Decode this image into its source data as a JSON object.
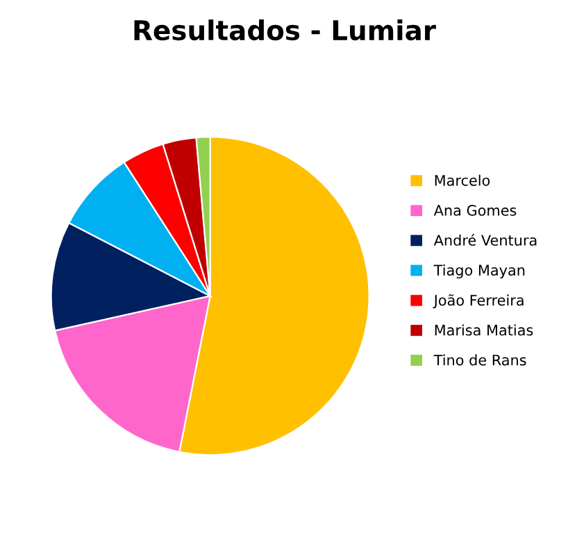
{
  "chart_data": {
    "type": "pie",
    "title": "Resultados - Lumiar",
    "categories": [
      "Marcelo",
      "Ana Gomes",
      "André Ventura",
      "Tiago Mayan",
      "João Ferreira",
      "Marisa Matias",
      "Tino de Rans"
    ],
    "values": [
      53.1,
      18.4,
      11.1,
      8.3,
      4.3,
      3.4,
      1.4
    ],
    "colors": [
      "#ffc000",
      "#ff66cc",
      "#002060",
      "#00b0f0",
      "#ff0000",
      "#c00000",
      "#92d050"
    ],
    "legend": "right"
  }
}
